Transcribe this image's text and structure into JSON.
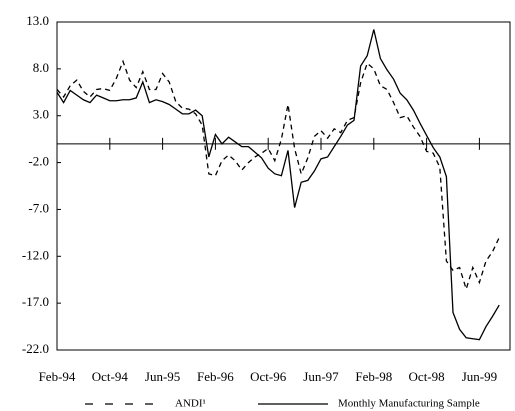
{
  "chart_data": {
    "type": "line",
    "categories": [
      "Feb-94",
      null,
      null,
      null,
      null,
      null,
      null,
      null,
      "Oct-94",
      null,
      null,
      null,
      null,
      null,
      null,
      null,
      "Jun-95",
      null,
      null,
      null,
      null,
      null,
      null,
      null,
      "Feb-96",
      null,
      null,
      null,
      null,
      null,
      null,
      null,
      "Oct-96",
      null,
      null,
      null,
      null,
      null,
      null,
      null,
      "Jun-97",
      null,
      null,
      null,
      null,
      null,
      null,
      null,
      "Feb-98",
      null,
      null,
      null,
      null,
      null,
      null,
      null,
      "Oct-98",
      null,
      null,
      null,
      null,
      null,
      null,
      null,
      "Jun-99",
      null,
      null,
      null
    ],
    "series": [
      {
        "name": "ANDI¹",
        "color": "#000000",
        "style": "dashed",
        "values": [
          5.8,
          5.0,
          6.2,
          6.8,
          5.6,
          5.0,
          5.8,
          5.9,
          5.7,
          7.0,
          8.8,
          6.8,
          6.0,
          7.7,
          5.8,
          5.8,
          7.5,
          6.6,
          4.5,
          3.8,
          3.7,
          3.2,
          2.0,
          -3.2,
          -3.4,
          -1.8,
          -1.2,
          -1.8,
          -2.8,
          -2.0,
          -1.4,
          -1.0,
          -0.5,
          -1.8,
          0.5,
          4.2,
          -0.5,
          -3.2,
          -1.5,
          0.8,
          1.4,
          0.6,
          1.6,
          1.2,
          2.5,
          2.8,
          6.5,
          8.6,
          8.0,
          6.2,
          5.8,
          4.4,
          2.8,
          3.0,
          1.8,
          0.8,
          -0.8,
          -1.0,
          -2.5,
          -12.5,
          -13.5,
          -13.2,
          -15.5,
          -13.2,
          -14.8,
          -12.5,
          -11.5,
          -10.0
        ]
      },
      {
        "name": "Monthly Manufacturing Sample",
        "color": "#000000",
        "style": "solid",
        "values": [
          5.5,
          4.4,
          5.7,
          5.2,
          4.7,
          4.4,
          5.2,
          4.9,
          4.6,
          4.6,
          4.7,
          4.7,
          4.9,
          6.6,
          4.4,
          4.7,
          4.5,
          4.2,
          3.7,
          3.2,
          3.2,
          3.6,
          3.0,
          -1.4,
          1.0,
          0.0,
          0.7,
          0.2,
          -0.3,
          -0.3,
          -0.9,
          -1.5,
          -2.6,
          -3.2,
          -3.4,
          -0.7,
          -6.8,
          -4.1,
          -3.9,
          -2.9,
          -1.6,
          -1.4,
          -0.3,
          0.8,
          2.0,
          2.5,
          8.3,
          9.4,
          12.2,
          9.1,
          7.9,
          6.9,
          5.4,
          4.7,
          3.6,
          2.2,
          0.9,
          -0.4,
          -1.4,
          -3.5,
          -18.0,
          -19.8,
          -20.7,
          -20.8,
          -20.9,
          -19.5,
          -18.4,
          -17.2
        ]
      }
    ],
    "ylim": [
      -22,
      13
    ],
    "yticks": [
      {
        "value": -22,
        "label": "-22.0"
      },
      {
        "value": -17,
        "label": "-17.0"
      },
      {
        "value": -12,
        "label": "-12.0"
      },
      {
        "value": -7,
        "label": "-7.0"
      },
      {
        "value": -2,
        "label": "-2.0"
      },
      {
        "value": 3,
        "label": "3.0"
      },
      {
        "value": 8,
        "label": "8.0"
      },
      {
        "value": 13,
        "label": "13.0"
      }
    ],
    "legend": "bottom"
  }
}
